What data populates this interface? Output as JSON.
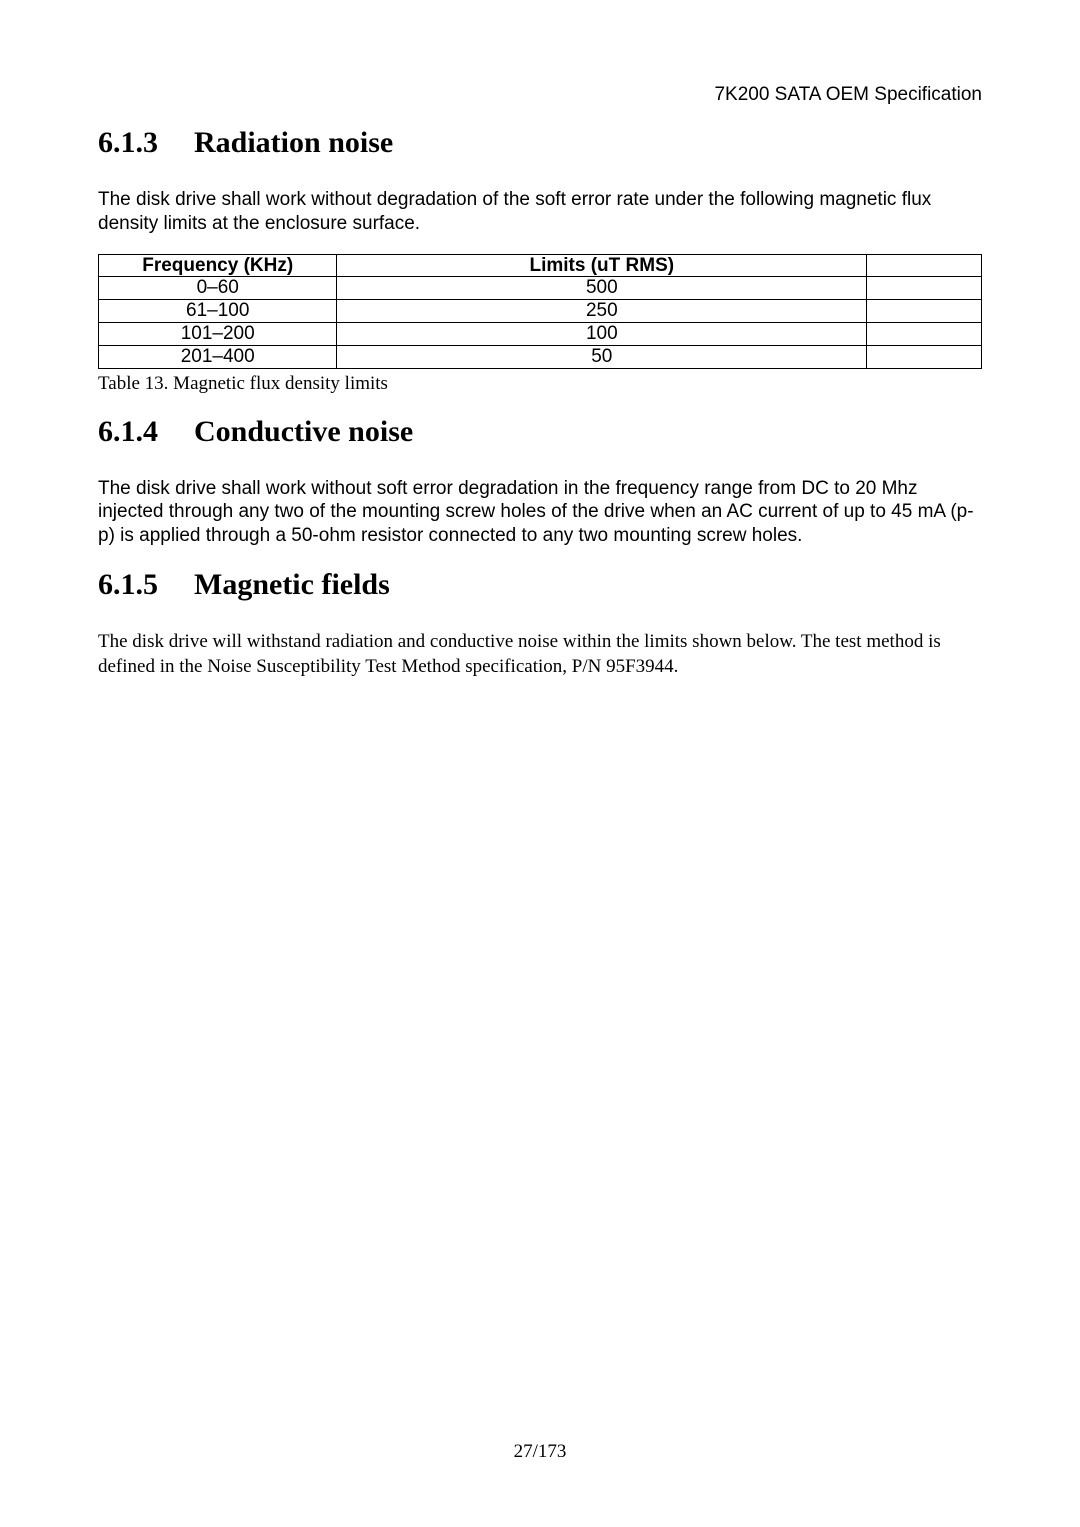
{
  "header": {
    "doc_title": "7K200 SATA OEM Specification"
  },
  "sections": {
    "s613": {
      "num": "6.1.3",
      "title": "Radiation noise",
      "body": "The disk drive shall work without degradation of the soft error rate under the following magnetic flux density limits at the enclosure surface."
    },
    "s614": {
      "num": "6.1.4",
      "title": "Conductive noise",
      "body": "The disk drive shall work without soft error degradation in the frequency range from DC to 20 Mhz injected through any two of the mounting screw holes of the drive when an AC current of up to 45 mA (p-p) is applied through a 50-ohm resistor connected to any two mounting screw holes."
    },
    "s615": {
      "num": "6.1.5",
      "title": "Magnetic fields",
      "body": "The disk drive will withstand radiation and conductive noise within the limits shown below. The test method is defined in the Noise Susceptibility Test Method specification, P/N 95F3944."
    }
  },
  "table": {
    "caption": "Table 13. Magnetic flux density limits",
    "columns": [
      "Frequency (KHz)",
      "Limits (uT RMS)"
    ],
    "rows": [
      [
        "0–60",
        "500"
      ],
      [
        "61–100",
        "250"
      ],
      [
        "101–200",
        "100"
      ],
      [
        "201–400",
        "50"
      ]
    ]
  },
  "footer": {
    "page": "27/173"
  }
}
